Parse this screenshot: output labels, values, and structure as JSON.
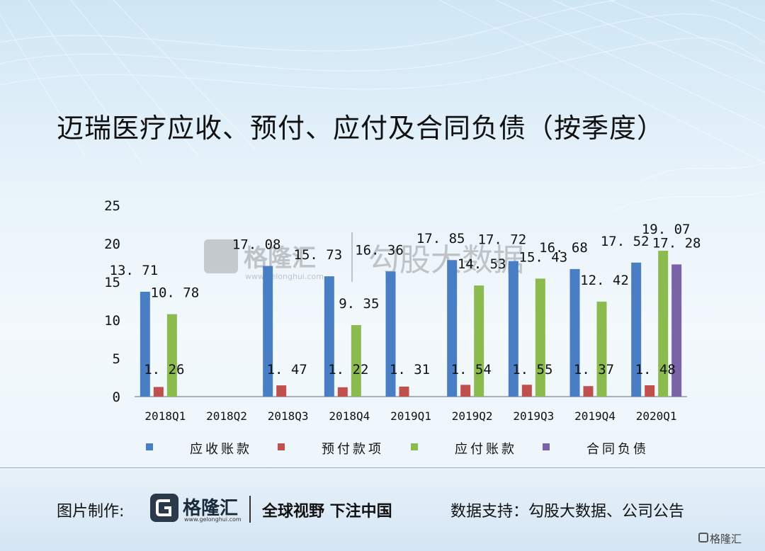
{
  "title": "迈瑞医疗应收、预付、应付及合同负债（按季度）",
  "watermark": {
    "brand": "格隆汇",
    "url": "www.gelonghui.com",
    "partner": "勾股大数据"
  },
  "footer": {
    "credit_label": "图片制作:",
    "logo_text": "格隆汇",
    "logo_url": "www.gelonghui.com",
    "slogan": "全球视野 下注中国",
    "source": "数据支持：勾股大数据、公司公告",
    "corner_mark": "格隆汇"
  },
  "chart_data": {
    "type": "bar",
    "categories": [
      "2018Q1",
      "2018Q2",
      "2018Q3",
      "2018Q4",
      "2019Q1",
      "2019Q2",
      "2019Q3",
      "2019Q4",
      "2020Q1"
    ],
    "ylim": [
      0,
      25
    ],
    "yticks": [
      0,
      5,
      10,
      15,
      20,
      25
    ],
    "grid": false,
    "legend_position": "bottom",
    "series": [
      {
        "name": "应收账款",
        "color": "#4a7ec4",
        "values": [
          13.71,
          null,
          17.08,
          15.73,
          16.36,
          17.85,
          17.72,
          16.68,
          17.52
        ]
      },
      {
        "name": "预付款项",
        "color": "#c0504d",
        "values": [
          1.26,
          null,
          1.47,
          1.22,
          1.31,
          1.54,
          1.55,
          1.37,
          1.48
        ]
      },
      {
        "name": "应付账款",
        "color": "#8bbb4f",
        "values": [
          10.78,
          null,
          null,
          9.35,
          null,
          14.53,
          15.43,
          12.42,
          19.07
        ]
      },
      {
        "name": "合同负债",
        "color": "#7b63a8",
        "values": [
          null,
          null,
          null,
          null,
          null,
          null,
          null,
          null,
          17.28
        ]
      }
    ]
  }
}
